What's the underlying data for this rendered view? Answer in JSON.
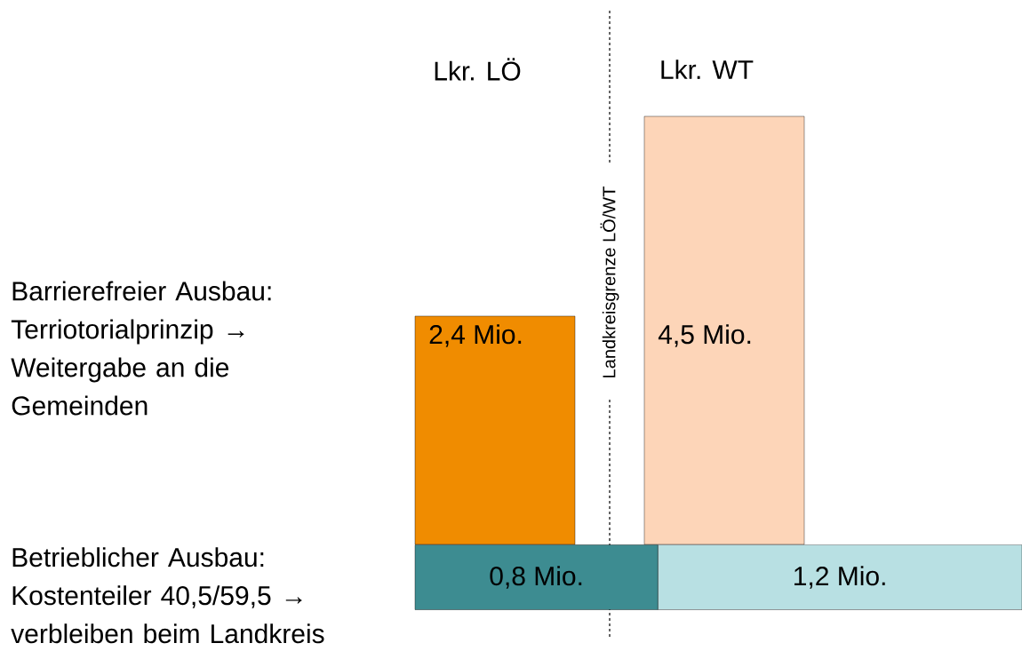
{
  "chart_data": [
    {
      "type": "bar",
      "categories": [
        "Lkr. LÖ",
        "Lkr. WT"
      ],
      "values": [
        2.4,
        4.5
      ],
      "colors": [
        "#f08c00",
        "#fdd5b8"
      ],
      "value_labels": [
        "2,4 Mio.",
        "4,5 Mio."
      ],
      "ylabel": "Barrierefreier Ausbau: Terriotorialprinzip → Weitergabe an die Gemeinden",
      "annotations": [
        "Landkreisgrenze LÖ/WT"
      ]
    },
    {
      "type": "bar",
      "orientation": "horizontal",
      "stacked": true,
      "categories": [
        null
      ],
      "ylabel": "Betrieblicher Ausbau: Kostenteiler 40,5/59,5 → verbleiben beim Landkreis",
      "series": [
        {
          "color": "#3d8c91",
          "values": [
            0.8
          ],
          "value_labels": [
            "0,8 Mio."
          ]
        },
        {
          "color": "#b8e0e3",
          "values": [
            1.2
          ],
          "value_labels": [
            "1,2 Mio."
          ]
        }
      ]
    }
  ]
}
